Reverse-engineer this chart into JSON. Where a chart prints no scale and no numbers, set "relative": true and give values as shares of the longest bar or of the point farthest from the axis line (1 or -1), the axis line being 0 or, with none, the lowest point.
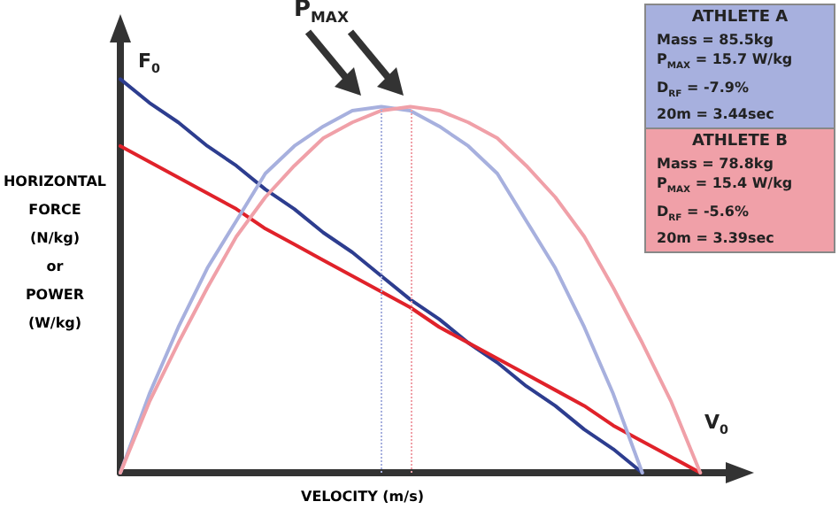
{
  "chart_data": {
    "type": "line",
    "relative": true,
    "xlabel": "VELOCITY (m/s)",
    "ylabel": "HORIZONTAL\nFORCE\n(N/kg)\nor\nPOWER\n(W/kg)",
    "categories": [
      null,
      null,
      null,
      null,
      null,
      null,
      null,
      null,
      null,
      null,
      null,
      null,
      null,
      null,
      null,
      null,
      null,
      null,
      null,
      null,
      null,
      null
    ],
    "series": [
      {
        "color": "#2d3d8f",
        "values": [
          1,
          0.94,
          0.89,
          0.83,
          0.78,
          0.72,
          0.67,
          0.61,
          0.56,
          0.5,
          0.44,
          0.39,
          0.33,
          0.28,
          0.22,
          0.17,
          0.11,
          0.06,
          0,
          null,
          null,
          null
        ]
      },
      {
        "color": "#e0222a",
        "values": [
          0.83,
          0.79,
          0.75,
          0.71,
          0.67,
          0.62,
          0.58,
          0.54,
          0.5,
          0.46,
          0.42,
          0.37,
          0.33,
          0.29,
          0.25,
          0.21,
          0.17,
          0.12,
          0.08,
          0.04,
          0,
          null
        ]
      },
      {
        "color": "#a7b0de",
        "values": [
          0,
          0.2,
          0.37,
          0.52,
          0.64,
          0.76,
          0.83,
          0.88,
          0.92,
          0.93,
          0.92,
          0.88,
          0.83,
          0.76,
          0.64,
          0.52,
          0.37,
          0.2,
          0,
          null,
          null,
          null
        ]
      },
      {
        "color": "#f0a0a8",
        "values": [
          0,
          0.18,
          0.33,
          0.47,
          0.6,
          0.7,
          0.78,
          0.85,
          0.89,
          0.92,
          0.93,
          0.92,
          0.89,
          0.85,
          0.78,
          0.7,
          0.6,
          0.47,
          0.33,
          0.18,
          0,
          null
        ]
      }
    ],
    "annotations": [
      "P$_{MAX}$",
      "F$_{0}$",
      "V$_{0}$",
      "ATHLETE A",
      "Mass = 85.5kg",
      "P$_{MAX}$ = 15.7 W/kg",
      "D$_{RF}$ = -7.9%",
      "20m = 3.44sec",
      "ATHLETE B",
      "Mass = 78.8kg",
      "P$_{MAX}$ = 15.4 W/kg",
      "D$_{RF}$ = -5.6%",
      "20m = 3.39sec"
    ],
    "grid": false,
    "marker": "none",
    "line_style": "solid"
  }
}
